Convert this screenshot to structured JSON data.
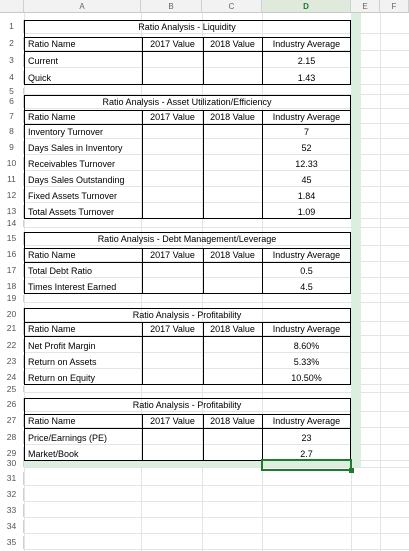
{
  "columns": [
    "A",
    "B",
    "C",
    "D",
    "E",
    "F"
  ],
  "active_column": "D",
  "rows": [
    "1",
    "2",
    "3",
    "4",
    "5",
    "6",
    "7",
    "8",
    "9",
    "10",
    "11",
    "12",
    "13",
    "14",
    "15",
    "16",
    "17",
    "18",
    "19",
    "20",
    "21",
    "22",
    "23",
    "24",
    "25",
    "26",
    "27",
    "28",
    "29",
    "30",
    "31",
    "32",
    "33",
    "34",
    "35"
  ],
  "headers": {
    "name": "Ratio Name",
    "y2017": "2017 Value",
    "y2018": "2018 Value",
    "industry": "Industry Average"
  },
  "sections": [
    {
      "title": "Ratio Analysis - Liquidity",
      "items": [
        {
          "name": "Current",
          "industry": "2.15"
        },
        {
          "name": "Quick",
          "industry": "1.43"
        }
      ]
    },
    {
      "title": "Ratio Analysis - Asset Utilization/Efficiency",
      "items": [
        {
          "name": "Inventory Turnover",
          "industry": "7"
        },
        {
          "name": "Days Sales in Inventory",
          "industry": "52"
        },
        {
          "name": "Receivables Turnover",
          "industry": "12.33"
        },
        {
          "name": "Days Sales Outstanding",
          "industry": "45"
        },
        {
          "name": "Fixed Assets Turnover",
          "industry": "1.84"
        },
        {
          "name": "Total Assets Turnover",
          "industry": "1.09"
        }
      ]
    },
    {
      "title": "Ratio Analysis - Debt Management/Leverage",
      "items": [
        {
          "name": "Total Debt Ratio",
          "industry": "0.5"
        },
        {
          "name": "Times Interest Earned",
          "industry": "4.5"
        }
      ]
    },
    {
      "title": "Ratio Analysis - Profitability",
      "items": [
        {
          "name": "Net Profit Margin",
          "industry": "8.60%"
        },
        {
          "name": "Return on Assets",
          "industry": "5.33%"
        },
        {
          "name": "Return on Equity",
          "industry": "10.50%"
        }
      ]
    },
    {
      "title": "Ratio Analysis - Profitability",
      "items": [
        {
          "name": "Price/Earnings (PE)",
          "industry": "23"
        },
        {
          "name": "Market/Book",
          "industry": "2.7"
        }
      ]
    }
  ],
  "colors": {
    "selection": "#1e7a2f",
    "highlight": "#dceedd",
    "grid": "#e4e4e4"
  }
}
